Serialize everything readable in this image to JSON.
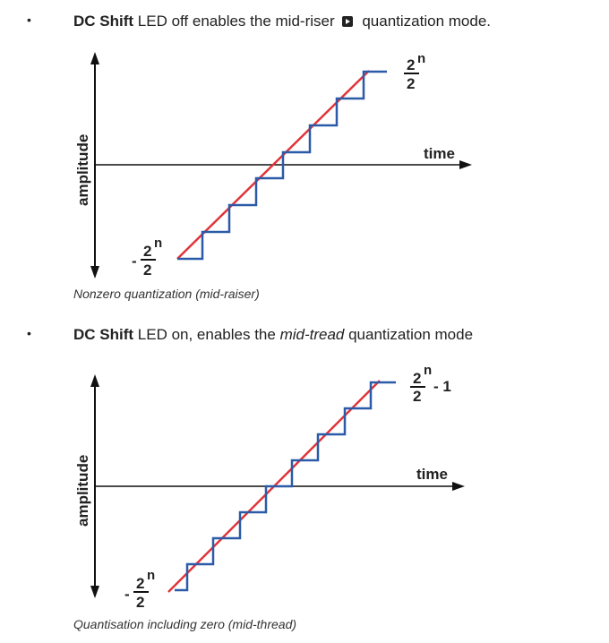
{
  "section1": {
    "bullet": "•",
    "title_bold": "DC Shift",
    "title_rest": " LED off enables the mid-riser",
    "title_tail": " quantization mode.",
    "icon": "play-box-icon",
    "caption": "Nonzero quantization (mid-raiser)"
  },
  "section2": {
    "bullet": "•",
    "title_bold": "DC Shift",
    "title_rest": " LED on, enables the ",
    "title_italic": "mid-tread",
    "title_tail": " quantization mode",
    "caption": "Quantisation including zero (mid-thread)"
  },
  "figure_labels": {
    "amplitude": "amplitude",
    "time": "time",
    "neg_sign": "-",
    "two": "2",
    "exp": "n",
    "minus_one": "- 1"
  },
  "colors": {
    "stair": "#2b5ba8",
    "ramp": "#e0343a",
    "axis": "#111111",
    "text": "#222222"
  }
}
